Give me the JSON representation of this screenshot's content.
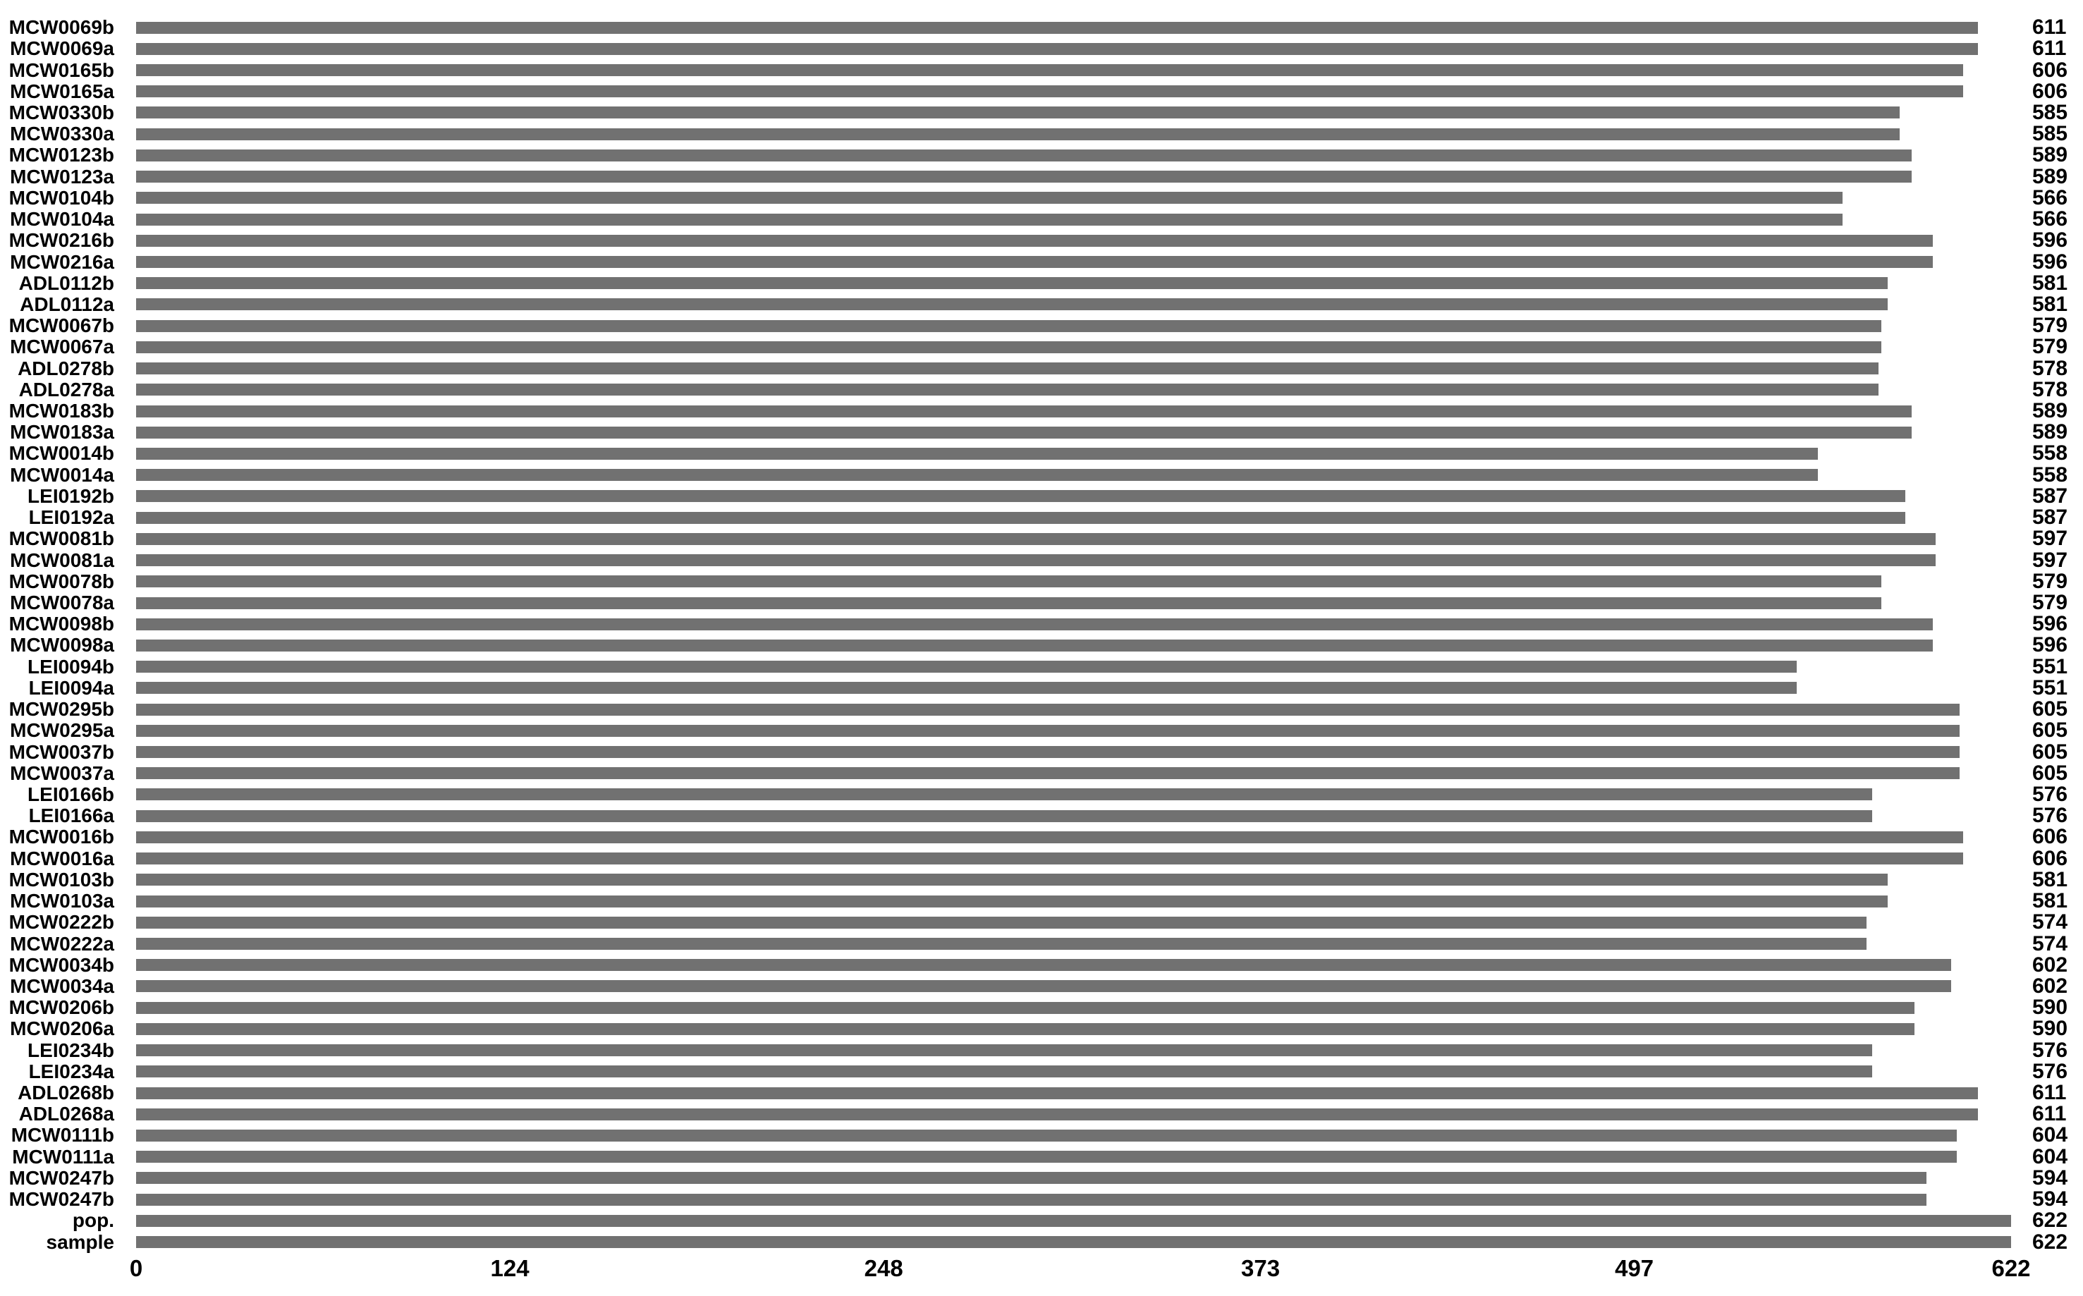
{
  "chart_data": {
    "type": "bar",
    "orientation": "horizontal",
    "title": "",
    "xlabel": "",
    "ylabel": "",
    "xlim": [
      0,
      622
    ],
    "x_ticks": [
      0,
      124,
      248,
      373,
      497,
      622
    ],
    "grid": false,
    "legend": null,
    "value_labels_position": "right",
    "bar_color": "#717171",
    "text_color": "#000000",
    "background_color": "#ffffff",
    "rows": [
      {
        "label": "MCW0069b",
        "value": 611
      },
      {
        "label": "MCW0069a",
        "value": 611
      },
      {
        "label": "MCW0165b",
        "value": 606
      },
      {
        "label": "MCW0165a",
        "value": 606
      },
      {
        "label": "MCW0330b",
        "value": 585
      },
      {
        "label": "MCW0330a",
        "value": 585
      },
      {
        "label": "MCW0123b",
        "value": 589
      },
      {
        "label": "MCW0123a",
        "value": 589
      },
      {
        "label": "MCW0104b",
        "value": 566
      },
      {
        "label": "MCW0104a",
        "value": 566
      },
      {
        "label": "MCW0216b",
        "value": 596
      },
      {
        "label": "MCW0216a",
        "value": 596
      },
      {
        "label": "ADL0112b",
        "value": 581
      },
      {
        "label": "ADL0112a",
        "value": 581
      },
      {
        "label": "MCW0067b",
        "value": 579
      },
      {
        "label": "MCW0067a",
        "value": 579
      },
      {
        "label": "ADL0278b",
        "value": 578
      },
      {
        "label": "ADL0278a",
        "value": 578
      },
      {
        "label": "MCW0183b",
        "value": 589
      },
      {
        "label": "MCW0183a",
        "value": 589
      },
      {
        "label": "MCW0014b",
        "value": 558
      },
      {
        "label": "MCW0014a",
        "value": 558
      },
      {
        "label": "LEI0192b",
        "value": 587
      },
      {
        "label": "LEI0192a",
        "value": 587
      },
      {
        "label": "MCW0081b",
        "value": 597
      },
      {
        "label": "MCW0081a",
        "value": 597
      },
      {
        "label": "MCW0078b",
        "value": 579
      },
      {
        "label": "MCW0078a",
        "value": 579
      },
      {
        "label": "MCW0098b",
        "value": 596
      },
      {
        "label": "MCW0098a",
        "value": 596
      },
      {
        "label": "LEI0094b",
        "value": 551
      },
      {
        "label": "LEI0094a",
        "value": 551
      },
      {
        "label": "MCW0295b",
        "value": 605
      },
      {
        "label": "MCW0295a",
        "value": 605
      },
      {
        "label": "MCW0037b",
        "value": 605
      },
      {
        "label": "MCW0037a",
        "value": 605
      },
      {
        "label": "LEI0166b",
        "value": 576
      },
      {
        "label": "LEI0166a",
        "value": 576
      },
      {
        "label": "MCW0016b",
        "value": 606
      },
      {
        "label": "MCW0016a",
        "value": 606
      },
      {
        "label": "MCW0103b",
        "value": 581
      },
      {
        "label": "MCW0103a",
        "value": 581
      },
      {
        "label": "MCW0222b",
        "value": 574
      },
      {
        "label": "MCW0222a",
        "value": 574
      },
      {
        "label": "MCW0034b",
        "value": 602
      },
      {
        "label": "MCW0034a",
        "value": 602
      },
      {
        "label": "MCW0206b",
        "value": 590
      },
      {
        "label": "MCW0206a",
        "value": 590
      },
      {
        "label": "LEI0234b",
        "value": 576
      },
      {
        "label": "LEI0234a",
        "value": 576
      },
      {
        "label": "ADL0268b",
        "value": 611
      },
      {
        "label": "ADL0268a",
        "value": 611
      },
      {
        "label": "MCW0111b",
        "value": 604
      },
      {
        "label": "MCW0111a",
        "value": 604
      },
      {
        "label": "MCW0247b",
        "value": 594
      },
      {
        "label": "MCW0247b",
        "value": 594
      },
      {
        "label": "pop.",
        "value": 622
      },
      {
        "label": "sample",
        "value": 622
      }
    ]
  }
}
